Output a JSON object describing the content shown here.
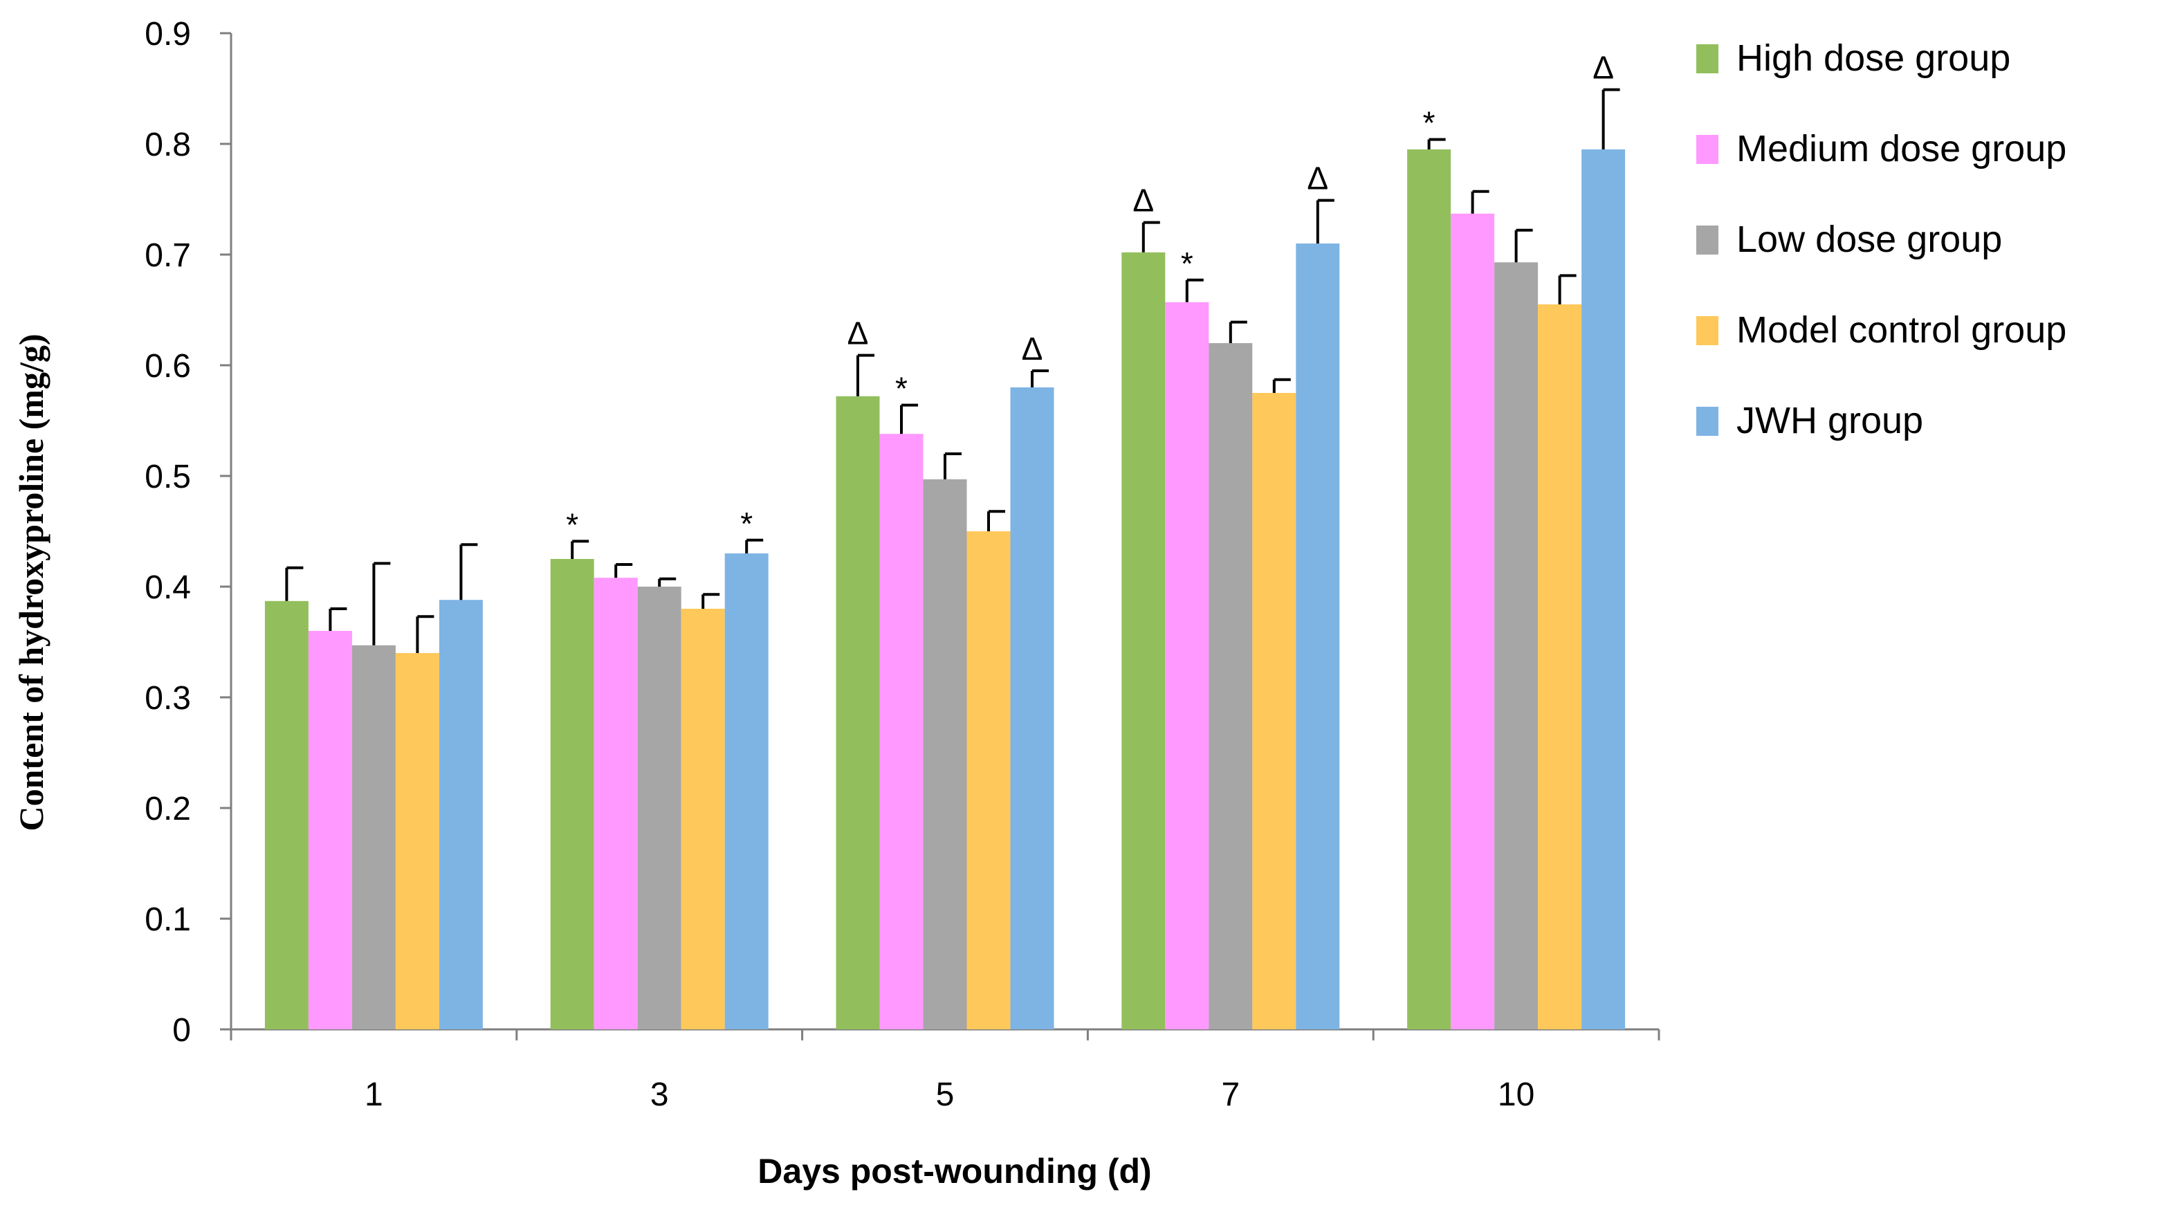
{
  "chart_data": {
    "type": "bar",
    "title": "",
    "xlabel": "Days post-wounding (d)",
    "ylabel": "Content of hydroxyproline (mg/g)",
    "ylim": [
      0,
      0.9
    ],
    "ytick_step": 0.1,
    "yticks": [
      "0",
      "0.1",
      "0.2",
      "0.3",
      "0.4",
      "0.5",
      "0.6",
      "0.7",
      "0.8",
      "0.9"
    ],
    "grid": false,
    "legend_position": "right",
    "categories": [
      "1",
      "3",
      "5",
      "7",
      "10"
    ],
    "series": [
      {
        "name": "High dose group",
        "color": "#92bf5c",
        "values": [
          0.387,
          0.425,
          0.572,
          0.702,
          0.795
        ],
        "errors": [
          0.03,
          0.016,
          0.037,
          0.027,
          0.009
        ],
        "annotations": [
          "",
          "*",
          "Δ",
          "Δ",
          "*"
        ]
      },
      {
        "name": "Medium dose group",
        "color": "#ff99ff",
        "values": [
          0.36,
          0.408,
          0.538,
          0.657,
          0.737
        ],
        "errors": [
          0.02,
          0.012,
          0.026,
          0.02,
          0.02
        ],
        "annotations": [
          "",
          "",
          "*",
          "*",
          ""
        ]
      },
      {
        "name": "Low dose group",
        "color": "#a6a6a6",
        "values": [
          0.347,
          0.4,
          0.497,
          0.62,
          0.693
        ],
        "errors": [
          0.074,
          0.007,
          0.023,
          0.019,
          0.029
        ],
        "annotations": [
          "",
          "",
          "",
          "",
          ""
        ]
      },
      {
        "name": "Model control group",
        "color": "#ffc85a",
        "values": [
          0.34,
          0.38,
          0.45,
          0.575,
          0.655
        ],
        "errors": [
          0.033,
          0.013,
          0.018,
          0.012,
          0.026
        ],
        "annotations": [
          "",
          "",
          "",
          "",
          ""
        ]
      },
      {
        "name": "JWH group",
        "color": "#7eb4e4",
        "values": [
          0.388,
          0.43,
          0.58,
          0.71,
          0.795
        ],
        "errors": [
          0.05,
          0.012,
          0.015,
          0.039,
          0.054
        ],
        "annotations": [
          "",
          "*",
          "Δ",
          "Δ",
          "Δ"
        ]
      }
    ]
  }
}
